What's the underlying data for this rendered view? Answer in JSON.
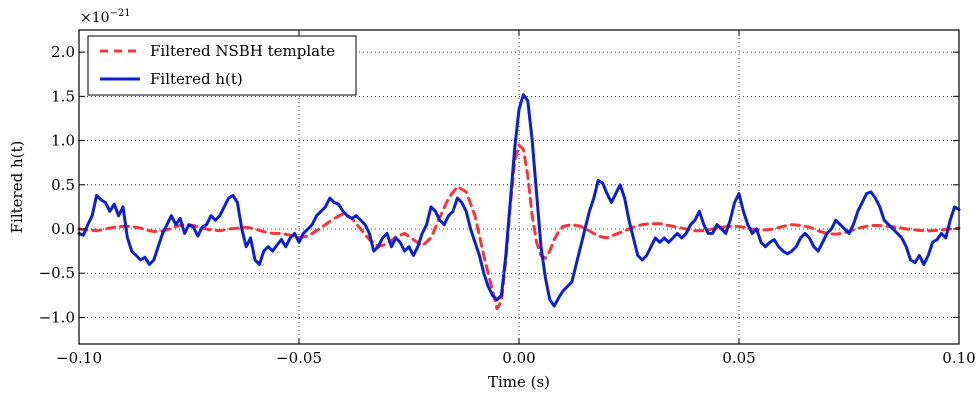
{
  "chart_data": {
    "type": "line",
    "title": "",
    "xlabel": "Time (s)",
    "ylabel": "Filtered h(t)",
    "y_scale_label": "×10",
    "y_scale_exponent": "−21",
    "xlim": [
      -0.1,
      0.1
    ],
    "ylim": [
      -1.3,
      2.25
    ],
    "grid": true,
    "grid_style": "dotted",
    "legend_position": "top-left",
    "x_ticks": [
      -0.1,
      -0.05,
      0.0,
      0.05,
      0.1
    ],
    "x_tick_labels": [
      "−0.10",
      "−0.05",
      "0.00",
      "0.05",
      "0.10"
    ],
    "y_ticks": [
      -1.0,
      -0.5,
      0.0,
      0.5,
      1.0,
      1.5,
      2.0
    ],
    "y_tick_labels": [
      "−1.0",
      "−0.5",
      "0.0",
      "0.5",
      "1.0",
      "1.5",
      "2.0"
    ],
    "series": [
      {
        "name": "Filtered NSBH template",
        "color": "#ff3333",
        "dash": true,
        "x": [
          -0.1,
          -0.098,
          -0.096,
          -0.094,
          -0.092,
          -0.09,
          -0.088,
          -0.086,
          -0.084,
          -0.082,
          -0.08,
          -0.078,
          -0.076,
          -0.074,
          -0.072,
          -0.07,
          -0.068,
          -0.066,
          -0.064,
          -0.062,
          -0.06,
          -0.058,
          -0.056,
          -0.054,
          -0.052,
          -0.05,
          -0.048,
          -0.046,
          -0.044,
          -0.042,
          -0.04,
          -0.038,
          -0.036,
          -0.034,
          -0.032,
          -0.03,
          -0.028,
          -0.026,
          -0.024,
          -0.022,
          -0.02,
          -0.018,
          -0.016,
          -0.014,
          -0.012,
          -0.01,
          -0.008,
          -0.006,
          -0.005,
          -0.004,
          -0.003,
          -0.002,
          -0.001,
          0.0,
          0.001,
          0.002,
          0.003,
          0.004,
          0.005,
          0.006,
          0.007,
          0.008,
          0.009,
          0.01,
          0.012,
          0.014,
          0.016,
          0.018,
          0.02,
          0.022,
          0.024,
          0.026,
          0.028,
          0.03,
          0.032,
          0.034,
          0.036,
          0.038,
          0.04,
          0.042,
          0.044,
          0.046,
          0.048,
          0.05,
          0.052,
          0.054,
          0.056,
          0.058,
          0.06,
          0.062,
          0.064,
          0.066,
          0.068,
          0.07,
          0.072,
          0.074,
          0.076,
          0.078,
          0.08,
          0.082,
          0.084,
          0.086,
          0.088,
          0.09,
          0.092,
          0.094,
          0.096,
          0.098,
          0.1
        ],
        "y": [
          0.0,
          -0.01,
          -0.02,
          0.0,
          0.02,
          0.03,
          0.03,
          0.01,
          -0.02,
          -0.03,
          -0.01,
          0.03,
          0.05,
          0.04,
          0.01,
          -0.01,
          -0.02,
          0.0,
          0.01,
          0.02,
          0.0,
          -0.03,
          -0.05,
          -0.05,
          -0.07,
          -0.1,
          -0.08,
          -0.02,
          0.05,
          0.12,
          0.17,
          0.12,
          0.0,
          -0.12,
          -0.2,
          -0.17,
          -0.09,
          -0.05,
          -0.12,
          -0.19,
          -0.1,
          0.13,
          0.35,
          0.48,
          0.42,
          0.15,
          -0.3,
          -0.7,
          -0.9,
          -0.82,
          -0.35,
          0.25,
          0.75,
          0.95,
          0.9,
          0.6,
          0.15,
          -0.15,
          -0.3,
          -0.33,
          -0.25,
          -0.12,
          -0.03,
          0.03,
          0.05,
          0.03,
          -0.02,
          -0.08,
          -0.1,
          -0.06,
          -0.02,
          0.02,
          0.05,
          0.06,
          0.06,
          0.04,
          0.02,
          0.0,
          -0.02,
          -0.02,
          0.0,
          0.02,
          0.03,
          0.03,
          0.01,
          -0.01,
          -0.01,
          0.0,
          0.03,
          0.05,
          0.04,
          0.02,
          -0.02,
          -0.05,
          -0.06,
          -0.04,
          -0.01,
          0.02,
          0.04,
          0.04,
          0.03,
          0.02,
          0.0,
          -0.01,
          -0.02,
          -0.02,
          -0.01,
          0.0,
          0.01
        ]
      },
      {
        "name": "Filtered h(t)",
        "color": "#0a1fd6",
        "dash": false,
        "x": [
          -0.1,
          -0.099,
          -0.098,
          -0.097,
          -0.096,
          -0.095,
          -0.094,
          -0.093,
          -0.092,
          -0.091,
          -0.09,
          -0.089,
          -0.088,
          -0.087,
          -0.086,
          -0.085,
          -0.084,
          -0.083,
          -0.082,
          -0.081,
          -0.08,
          -0.079,
          -0.078,
          -0.077,
          -0.076,
          -0.075,
          -0.074,
          -0.073,
          -0.072,
          -0.071,
          -0.07,
          -0.069,
          -0.068,
          -0.067,
          -0.066,
          -0.065,
          -0.064,
          -0.063,
          -0.062,
          -0.061,
          -0.06,
          -0.059,
          -0.058,
          -0.057,
          -0.056,
          -0.055,
          -0.054,
          -0.053,
          -0.052,
          -0.051,
          -0.05,
          -0.049,
          -0.048,
          -0.047,
          -0.046,
          -0.045,
          -0.044,
          -0.043,
          -0.042,
          -0.041,
          -0.04,
          -0.039,
          -0.038,
          -0.037,
          -0.036,
          -0.035,
          -0.034,
          -0.033,
          -0.032,
          -0.031,
          -0.03,
          -0.029,
          -0.028,
          -0.027,
          -0.026,
          -0.025,
          -0.024,
          -0.023,
          -0.022,
          -0.021,
          -0.02,
          -0.019,
          -0.018,
          -0.017,
          -0.016,
          -0.015,
          -0.014,
          -0.013,
          -0.012,
          -0.011,
          -0.01,
          -0.009,
          -0.008,
          -0.007,
          -0.006,
          -0.005,
          -0.004,
          -0.003,
          -0.002,
          -0.001,
          0.0,
          0.001,
          0.002,
          0.003,
          0.004,
          0.005,
          0.006,
          0.007,
          0.008,
          0.009,
          0.01,
          0.011,
          0.012,
          0.013,
          0.014,
          0.015,
          0.016,
          0.017,
          0.018,
          0.019,
          0.02,
          0.021,
          0.022,
          0.023,
          0.024,
          0.025,
          0.026,
          0.027,
          0.028,
          0.029,
          0.03,
          0.031,
          0.032,
          0.033,
          0.034,
          0.035,
          0.036,
          0.037,
          0.038,
          0.039,
          0.04,
          0.041,
          0.042,
          0.043,
          0.044,
          0.045,
          0.046,
          0.047,
          0.048,
          0.049,
          0.05,
          0.051,
          0.052,
          0.053,
          0.054,
          0.055,
          0.056,
          0.057,
          0.058,
          0.059,
          0.06,
          0.061,
          0.062,
          0.063,
          0.064,
          0.065,
          0.066,
          0.067,
          0.068,
          0.069,
          0.07,
          0.071,
          0.072,
          0.073,
          0.074,
          0.075,
          0.076,
          0.077,
          0.078,
          0.079,
          0.08,
          0.081,
          0.082,
          0.083,
          0.084,
          0.085,
          0.086,
          0.087,
          0.088,
          0.089,
          0.09,
          0.091,
          0.092,
          0.093,
          0.094,
          0.095,
          0.096,
          0.097,
          0.098,
          0.099,
          0.1
        ],
        "y": [
          -0.05,
          -0.07,
          0.05,
          0.15,
          0.38,
          0.33,
          0.3,
          0.2,
          0.28,
          0.15,
          0.25,
          -0.1,
          -0.25,
          -0.3,
          -0.35,
          -0.32,
          -0.4,
          -0.35,
          -0.2,
          -0.05,
          0.05,
          0.15,
          0.05,
          0.12,
          -0.05,
          0.05,
          0.02,
          -0.08,
          0.02,
          0.05,
          0.15,
          0.1,
          0.15,
          0.25,
          0.35,
          0.38,
          0.3,
          0.0,
          -0.2,
          -0.1,
          -0.35,
          -0.4,
          -0.25,
          -0.2,
          -0.25,
          -0.18,
          -0.12,
          -0.2,
          -0.1,
          -0.05,
          -0.15,
          -0.05,
          0.0,
          0.05,
          0.15,
          0.2,
          0.25,
          0.35,
          0.3,
          0.28,
          0.2,
          0.15,
          0.12,
          0.15,
          0.1,
          0.05,
          -0.05,
          -0.25,
          -0.2,
          -0.1,
          -0.05,
          -0.2,
          -0.1,
          -0.15,
          -0.25,
          -0.2,
          -0.3,
          -0.2,
          -0.05,
          0.05,
          0.25,
          0.2,
          0.1,
          0.05,
          0.15,
          0.2,
          0.35,
          0.3,
          0.2,
          0.0,
          -0.15,
          -0.3,
          -0.5,
          -0.65,
          -0.75,
          -0.8,
          -0.75,
          -0.3,
          0.3,
          0.9,
          1.35,
          1.52,
          1.45,
          1.0,
          0.4,
          -0.2,
          -0.55,
          -0.8,
          -0.87,
          -0.78,
          -0.7,
          -0.65,
          -0.6,
          -0.4,
          -0.2,
          0.0,
          0.2,
          0.35,
          0.55,
          0.52,
          0.4,
          0.3,
          0.4,
          0.5,
          0.35,
          0.1,
          -0.1,
          -0.3,
          -0.35,
          -0.3,
          -0.2,
          -0.1,
          -0.15,
          -0.1,
          -0.15,
          -0.1,
          -0.05,
          -0.1,
          -0.05,
          0.05,
          0.1,
          0.2,
          0.05,
          -0.05,
          -0.05,
          0.05,
          0.0,
          -0.05,
          0.1,
          0.3,
          0.4,
          0.2,
          0.05,
          -0.05,
          0.0,
          -0.15,
          -0.2,
          -0.15,
          -0.12,
          -0.2,
          -0.25,
          -0.28,
          -0.25,
          -0.2,
          -0.1,
          -0.05,
          -0.1,
          -0.2,
          -0.25,
          -0.15,
          -0.05,
          0.0,
          0.1,
          0.05,
          0.0,
          -0.05,
          0.05,
          0.2,
          0.3,
          0.4,
          0.42,
          0.35,
          0.25,
          0.1,
          0.05,
          0.0,
          -0.05,
          -0.1,
          -0.2,
          -0.35,
          -0.38,
          -0.3,
          -0.4,
          -0.3,
          -0.15,
          -0.12,
          -0.05,
          -0.1,
          0.1,
          0.25,
          0.22
        ]
      }
    ]
  }
}
